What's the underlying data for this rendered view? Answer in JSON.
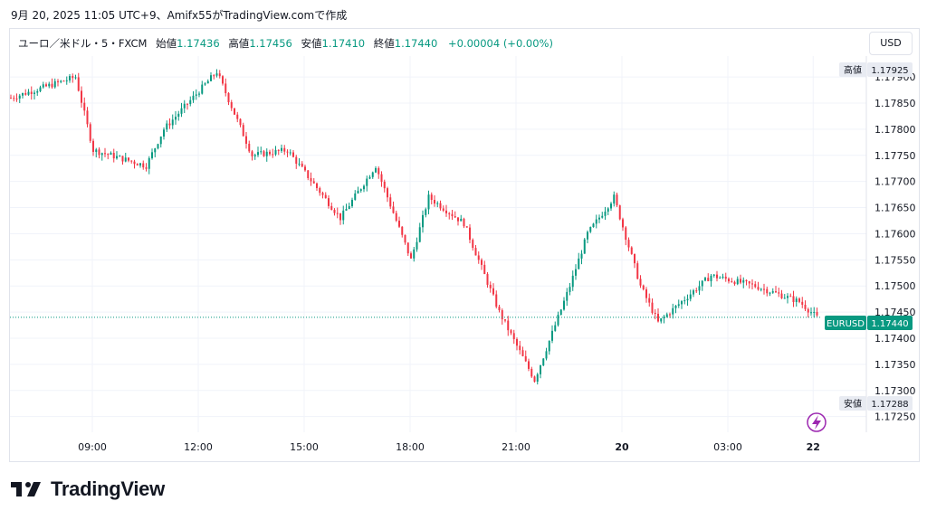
{
  "caption": "9月 20, 2025 11:05 UTC+9、Amifx55がTradingView.comで作成",
  "legend": {
    "symbol": "ユーロ／米ドル・5・FXCM",
    "open_label": "始値",
    "open": "1.17436",
    "high_label": "高値",
    "high": "1.17456",
    "low_label": "安値",
    "low": "1.17410",
    "close_label": "終値",
    "close": "1.17440",
    "change": "+0.00004 (+0.00%)"
  },
  "currency_button": "USD",
  "brand": "TradingView",
  "colors": {
    "up": "#089981",
    "down": "#f23645",
    "grid": "#f0f3fa",
    "axis_text": "#131722",
    "accent": "#9c27b0"
  },
  "chart_data": {
    "type": "candlestick",
    "symbol": "EURUSD",
    "interval": "5",
    "ylim": [
      1.1722,
      1.1794
    ],
    "y_ticks": [
      "1.17250",
      "1.17300",
      "1.17350",
      "1.17400",
      "1.17450",
      "1.17500",
      "1.17550",
      "1.17600",
      "1.17650",
      "1.17700",
      "1.17750",
      "1.17800",
      "1.17850",
      "1.17900"
    ],
    "x_ticks": [
      "09:00",
      "12:00",
      "15:00",
      "18:00",
      "21:00",
      "20",
      "03:00",
      "22"
    ],
    "price_labels": [
      {
        "tag": "高値",
        "value": "1.17925",
        "kind": "high"
      },
      {
        "tag": "EURUSD",
        "value": "1.17440",
        "kind": "last"
      },
      {
        "tag": "安値",
        "value": "1.17288",
        "kind": "low"
      }
    ],
    "last_price": 1.1744,
    "key_points": [
      {
        "time": "06:40",
        "close": 1.1786
      },
      {
        "time": "08:30",
        "close": 1.179
      },
      {
        "time": "09:00",
        "close": 1.1776
      },
      {
        "time": "10:30",
        "close": 1.1773
      },
      {
        "time": "11:00",
        "close": 1.178
      },
      {
        "time": "12:30",
        "close": 1.1791
      },
      {
        "time": "13:30",
        "close": 1.1775
      },
      {
        "time": "14:30",
        "close": 1.1776
      },
      {
        "time": "16:00",
        "close": 1.1763
      },
      {
        "time": "17:00",
        "close": 1.1773
      },
      {
        "time": "18:00",
        "close": 1.1755
      },
      {
        "time": "18:30",
        "close": 1.1767
      },
      {
        "time": "19:30",
        "close": 1.1762
      },
      {
        "time": "20:30",
        "close": 1.1745
      },
      {
        "time": "21:30",
        "close": 1.1732
      },
      {
        "time": "22:30",
        "close": 1.175
      },
      {
        "time": "23:00",
        "close": 1.176
      },
      {
        "time": "23:45",
        "close": 1.1767
      },
      {
        "time": "00:30",
        "close": 1.175
      },
      {
        "time": "01:00",
        "close": 1.1743
      },
      {
        "time": "02:30",
        "close": 1.1752
      },
      {
        "time": "03:45",
        "close": 1.175
      },
      {
        "time": "05:00",
        "close": 1.1747
      },
      {
        "time": "05:30",
        "close": 1.1744
      }
    ]
  }
}
